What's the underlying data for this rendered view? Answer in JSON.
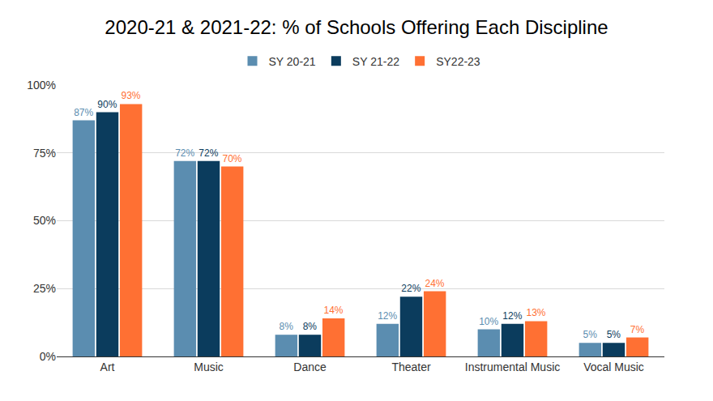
{
  "chart_data": {
    "type": "bar",
    "title": "2020-21 & 2021-22: % of Schools Offering Each Discipline",
    "categories": [
      "Art",
      "Music",
      "Dance",
      "Theater",
      "Instrumental Music",
      "Vocal Music"
    ],
    "series": [
      {
        "name": "SY 20-21",
        "color": "#5b8db0",
        "values": [
          87,
          72,
          8,
          12,
          10,
          5
        ],
        "value_labels": [
          "87%",
          "72%",
          "8%",
          "12%",
          "10%",
          "5%"
        ]
      },
      {
        "name": "SY 21-22",
        "color": "#0b3c5d",
        "values": [
          90,
          72,
          8,
          22,
          12,
          5
        ],
        "value_labels": [
          "90%",
          "72%",
          "8%",
          "22%",
          "12%",
          "5%"
        ]
      },
      {
        "name": "SY22-23",
        "color": "#ff7033",
        "values": [
          93,
          70,
          14,
          24,
          13,
          7
        ],
        "value_labels": [
          "93%",
          "70%",
          "14%",
          "24%",
          "13%",
          "7%"
        ]
      }
    ],
    "ylim": [
      0,
      100
    ],
    "yticks": [
      {
        "value": 0,
        "label": "0%"
      },
      {
        "value": 25,
        "label": "25%"
      },
      {
        "value": 50,
        "label": "50%"
      },
      {
        "value": 75,
        "label": "75%"
      },
      {
        "value": 100,
        "label": "100%"
      }
    ],
    "grid": true,
    "legend": "top",
    "data_labels": true
  }
}
